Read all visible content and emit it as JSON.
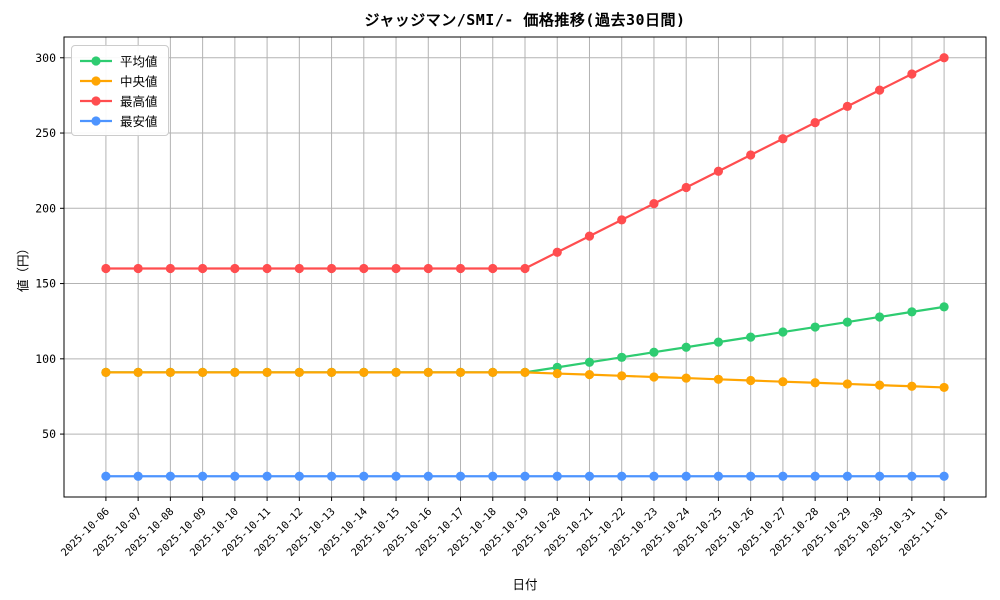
{
  "chart_data": {
    "type": "line",
    "title": "ジャッジマン/SMI/- 価格推移(過去30日間)",
    "xlabel": "日付",
    "ylabel": "値（円）",
    "ylim": [
      8,
      314
    ],
    "yticks": [
      50,
      100,
      150,
      200,
      250,
      300
    ],
    "grid": true,
    "legend_position": "upper left",
    "categories": [
      "2025-10-06",
      "2025-10-07",
      "2025-10-08",
      "2025-10-09",
      "2025-10-10",
      "2025-10-11",
      "2025-10-12",
      "2025-10-13",
      "2025-10-14",
      "2025-10-15",
      "2025-10-16",
      "2025-10-17",
      "2025-10-18",
      "2025-10-19",
      "2025-10-20",
      "2025-10-21",
      "2025-10-22",
      "2025-10-23",
      "2025-10-24",
      "2025-10-25",
      "2025-10-26",
      "2025-10-27",
      "2025-10-28",
      "2025-10-29",
      "2025-10-30",
      "2025-10-31",
      "2025-11-01"
    ],
    "series": [
      {
        "key": "average",
        "name": "平均値",
        "color": "#2ecc71",
        "values": [
          91,
          91,
          91,
          91,
          91,
          91,
          91,
          91,
          91,
          91,
          91,
          91,
          91,
          91,
          94.3,
          97.7,
          101,
          104.4,
          107.7,
          111.1,
          114.4,
          117.8,
          121.1,
          124.4,
          127.8,
          131.2,
          134.5
        ]
      },
      {
        "key": "median",
        "name": "中央値",
        "color": "#ffa502",
        "values": [
          91,
          91,
          91,
          91,
          91,
          91,
          91,
          91,
          91,
          91,
          91,
          91,
          91,
          91,
          90.2,
          89.5,
          88.7,
          87.9,
          87.2,
          86.4,
          85.6,
          84.8,
          84.1,
          83.3,
          82.5,
          81.8,
          81
        ]
      },
      {
        "key": "max",
        "name": "最高値",
        "color": "#ff4d4f",
        "values": [
          160,
          160,
          160,
          160,
          160,
          160,
          160,
          160,
          160,
          160,
          160,
          160,
          160,
          160,
          170.8,
          181.5,
          192.3,
          203.1,
          213.8,
          224.6,
          235.4,
          246.2,
          256.9,
          267.7,
          278.5,
          289.2,
          300
        ]
      },
      {
        "key": "min",
        "name": "最安値",
        "color": "#4d94ff",
        "values": [
          22,
          22,
          22,
          22,
          22,
          22,
          22,
          22,
          22,
          22,
          22,
          22,
          22,
          22,
          22,
          22,
          22,
          22,
          22,
          22,
          22,
          22,
          22,
          22,
          22,
          22,
          22
        ]
      }
    ]
  }
}
